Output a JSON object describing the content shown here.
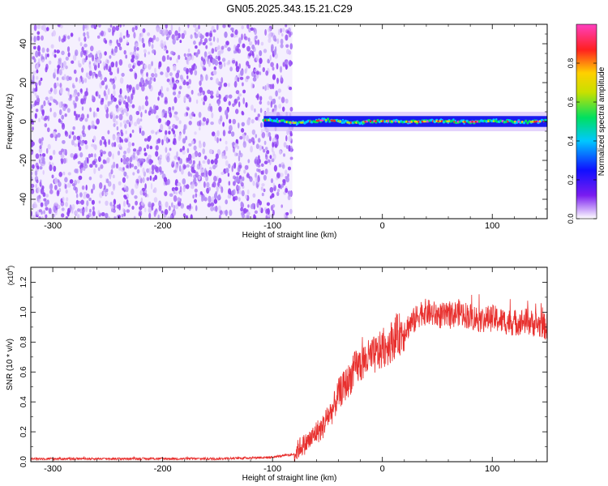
{
  "title": "GN05.2025.343.15.21.C29",
  "colors": {
    "scatter_dark": "#7a1cf0",
    "scatter_light": "#d9c2fb",
    "snr_line": "#e8302e"
  },
  "chart_data": [
    {
      "type": "heatmap",
      "name": "spectrogram",
      "xlabel": "Height of straight line (km)",
      "ylabel": "Frequency (Hz)",
      "xlim": [
        -320,
        150
      ],
      "ylim": [
        -50,
        50
      ],
      "xticks": [
        -300,
        -200,
        -100,
        0,
        100
      ],
      "yticks": [
        -40,
        -20,
        0,
        20,
        40
      ],
      "noise_region_x": [
        -320,
        -82
      ],
      "signal_band": {
        "x_start": -108,
        "x_end": 150,
        "center_frequency": 0,
        "half_width_start": 4,
        "half_width_end": 3
      },
      "colorbar": {
        "label": "Normalized spectral amplitude",
        "ticks": [
          0.0,
          0.2,
          0.4,
          0.6,
          0.8
        ],
        "tick_labels": [
          "0.0",
          "0.2",
          "0.4",
          "0.6",
          "0.8"
        ],
        "range": [
          0,
          1
        ],
        "colormap": [
          "#ffffff",
          "#7a1cf0",
          "#1010ff",
          "#00c8ff",
          "#00e060",
          "#c8e000",
          "#ffd000",
          "#ff2020",
          "#ff40c0"
        ]
      }
    },
    {
      "type": "line",
      "name": "snr",
      "xlabel": "Height of straight line (km)",
      "ylabel": "SNR (10 * v/v)",
      "scale_label": "(x10",
      "scale_exponent": "4",
      "scale_close": ")",
      "xlim": [
        -320,
        150
      ],
      "ylim": [
        0,
        1.3
      ],
      "xticks": [
        -300,
        -200,
        -100,
        0,
        100
      ],
      "yticks": [
        0.0,
        0.2,
        0.4,
        0.6,
        0.8,
        1.0,
        1.2
      ],
      "ytick_labels": [
        "0.0",
        "0.2",
        "0.4",
        "0.6",
        "0.8",
        "1.0",
        "1.2"
      ],
      "series": [
        {
          "x": [
            -320,
            -250,
            -150,
            -100,
            -80,
            -75,
            -70,
            -65,
            -60,
            -55,
            -50,
            -45,
            -40,
            -35,
            -30,
            -25,
            -20,
            -15,
            -10,
            -5,
            0,
            5,
            10,
            15,
            20,
            25,
            30,
            35,
            40,
            50,
            60,
            70,
            80,
            90,
            100,
            110,
            120,
            130,
            140,
            150
          ],
          "y": [
            0.02,
            0.02,
            0.02,
            0.03,
            0.05,
            0.1,
            0.12,
            0.15,
            0.2,
            0.22,
            0.3,
            0.35,
            0.45,
            0.5,
            0.55,
            0.62,
            0.65,
            0.68,
            0.7,
            0.72,
            0.75,
            0.78,
            0.82,
            0.85,
            0.88,
            0.92,
            0.95,
            1.0,
            1.0,
            0.98,
            0.97,
            1.0,
            0.97,
            0.95,
            0.96,
            0.94,
            0.93,
            0.94,
            0.92,
            0.9
          ]
        }
      ]
    }
  ]
}
